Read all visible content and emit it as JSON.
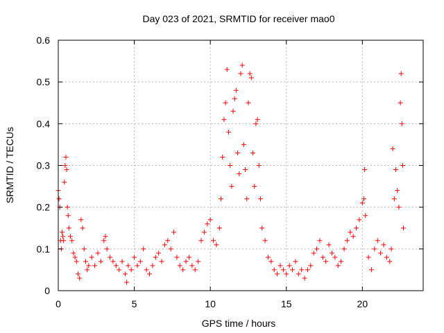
{
  "chart_data": {
    "type": "scatter",
    "title": "Day 023 of 2021, SRMTID for receiver mao0",
    "xlabel": "GPS time / hours",
    "ylabel": "SRMTID / TECUs",
    "xlim": [
      0,
      24
    ],
    "ylim": [
      0,
      0.6
    ],
    "x_ticks": [
      0,
      5,
      10,
      15,
      20
    ],
    "y_ticks": [
      0,
      0.1,
      0.2,
      0.3,
      0.4,
      0.5,
      0.6
    ],
    "x_tick_labels": [
      "0",
      "5",
      "10",
      "15",
      "20"
    ],
    "y_tick_labels": [
      "0",
      "0.1",
      "0.2",
      "0.3",
      "0.4",
      "0.5",
      "0.6"
    ],
    "grid": true,
    "marker": "+",
    "color": "#ff0000",
    "series": [
      {
        "name": "SRMTID",
        "points": [
          [
            0.0,
            0.24
          ],
          [
            0.05,
            0.22
          ],
          [
            0.1,
            0.2
          ],
          [
            0.15,
            0.12
          ],
          [
            0.2,
            0.1
          ],
          [
            0.25,
            0.14
          ],
          [
            0.3,
            0.13
          ],
          [
            0.35,
            0.12
          ],
          [
            0.4,
            0.26
          ],
          [
            0.45,
            0.3
          ],
          [
            0.5,
            0.32
          ],
          [
            0.55,
            0.29
          ],
          [
            0.6,
            0.2
          ],
          [
            0.65,
            0.18
          ],
          [
            0.7,
            0.15
          ],
          [
            0.8,
            0.13
          ],
          [
            0.9,
            0.12
          ],
          [
            1.0,
            0.09
          ],
          [
            1.1,
            0.08
          ],
          [
            1.2,
            0.07
          ],
          [
            1.3,
            0.04
          ],
          [
            1.4,
            0.03
          ],
          [
            1.5,
            0.17
          ],
          [
            1.6,
            0.15
          ],
          [
            1.7,
            0.1
          ],
          [
            1.8,
            0.07
          ],
          [
            1.9,
            0.05
          ],
          [
            2.0,
            0.06
          ],
          [
            2.2,
            0.08
          ],
          [
            2.4,
            0.06
          ],
          [
            2.6,
            0.09
          ],
          [
            2.8,
            0.07
          ],
          [
            3.0,
            0.12
          ],
          [
            3.1,
            0.13
          ],
          [
            3.2,
            0.1
          ],
          [
            3.4,
            0.08
          ],
          [
            3.6,
            0.07
          ],
          [
            3.8,
            0.06
          ],
          [
            4.0,
            0.05
          ],
          [
            4.2,
            0.07
          ],
          [
            4.4,
            0.04
          ],
          [
            4.5,
            0.02
          ],
          [
            4.6,
            0.06
          ],
          [
            4.8,
            0.05
          ],
          [
            5.0,
            0.08
          ],
          [
            5.2,
            0.06
          ],
          [
            5.4,
            0.07
          ],
          [
            5.6,
            0.1
          ],
          [
            5.8,
            0.05
          ],
          [
            6.0,
            0.04
          ],
          [
            6.2,
            0.06
          ],
          [
            6.4,
            0.08
          ],
          [
            6.6,
            0.09
          ],
          [
            6.8,
            0.07
          ],
          [
            7.0,
            0.11
          ],
          [
            7.2,
            0.12
          ],
          [
            7.4,
            0.1
          ],
          [
            7.6,
            0.14
          ],
          [
            7.8,
            0.08
          ],
          [
            8.0,
            0.06
          ],
          [
            8.2,
            0.05
          ],
          [
            8.4,
            0.07
          ],
          [
            8.6,
            0.08
          ],
          [
            8.8,
            0.06
          ],
          [
            9.0,
            0.05
          ],
          [
            9.2,
            0.07
          ],
          [
            9.4,
            0.12
          ],
          [
            9.6,
            0.14
          ],
          [
            9.8,
            0.16
          ],
          [
            10.0,
            0.17
          ],
          [
            10.2,
            0.12
          ],
          [
            10.4,
            0.11
          ],
          [
            10.6,
            0.15
          ],
          [
            10.7,
            0.22
          ],
          [
            10.8,
            0.32
          ],
          [
            10.9,
            0.41
          ],
          [
            11.0,
            0.45
          ],
          [
            11.1,
            0.53
          ],
          [
            11.2,
            0.38
          ],
          [
            11.3,
            0.3
          ],
          [
            11.4,
            0.25
          ],
          [
            11.5,
            0.43
          ],
          [
            11.6,
            0.46
          ],
          [
            11.7,
            0.48
          ],
          [
            11.8,
            0.33
          ],
          [
            11.9,
            0.28
          ],
          [
            12.0,
            0.52
          ],
          [
            12.1,
            0.54
          ],
          [
            12.2,
            0.35
          ],
          [
            12.3,
            0.29
          ],
          [
            12.4,
            0.22
          ],
          [
            12.5,
            0.45
          ],
          [
            12.6,
            0.52
          ],
          [
            12.7,
            0.51
          ],
          [
            12.8,
            0.33
          ],
          [
            12.9,
            0.25
          ],
          [
            13.0,
            0.4
          ],
          [
            13.1,
            0.41
          ],
          [
            13.2,
            0.3
          ],
          [
            13.3,
            0.22
          ],
          [
            13.4,
            0.15
          ],
          [
            13.6,
            0.12
          ],
          [
            13.8,
            0.08
          ],
          [
            14.0,
            0.07
          ],
          [
            14.2,
            0.05
          ],
          [
            14.4,
            0.04
          ],
          [
            14.6,
            0.06
          ],
          [
            14.8,
            0.05
          ],
          [
            15.0,
            0.04
          ],
          [
            15.2,
            0.06
          ],
          [
            15.4,
            0.05
          ],
          [
            15.6,
            0.07
          ],
          [
            15.8,
            0.04
          ],
          [
            16.0,
            0.05
          ],
          [
            16.2,
            0.03
          ],
          [
            16.4,
            0.05
          ],
          [
            16.6,
            0.06
          ],
          [
            16.8,
            0.09
          ],
          [
            17.0,
            0.1
          ],
          [
            17.2,
            0.12
          ],
          [
            17.4,
            0.08
          ],
          [
            17.6,
            0.07
          ],
          [
            17.8,
            0.11
          ],
          [
            18.0,
            0.09
          ],
          [
            18.2,
            0.08
          ],
          [
            18.4,
            0.06
          ],
          [
            18.6,
            0.07
          ],
          [
            18.8,
            0.1
          ],
          [
            19.0,
            0.12
          ],
          [
            19.2,
            0.14
          ],
          [
            19.4,
            0.13
          ],
          [
            19.6,
            0.15
          ],
          [
            19.8,
            0.17
          ],
          [
            20.0,
            0.21
          ],
          [
            20.1,
            0.22
          ],
          [
            20.15,
            0.29
          ],
          [
            20.2,
            0.18
          ],
          [
            20.4,
            0.08
          ],
          [
            20.6,
            0.05
          ],
          [
            20.8,
            0.1
          ],
          [
            21.0,
            0.12
          ],
          [
            21.2,
            0.09
          ],
          [
            21.4,
            0.11
          ],
          [
            21.6,
            0.08
          ],
          [
            21.8,
            0.07
          ],
          [
            21.9,
            0.1
          ],
          [
            22.0,
            0.34
          ],
          [
            22.1,
            0.22
          ],
          [
            22.2,
            0.29
          ],
          [
            22.3,
            0.24
          ],
          [
            22.4,
            0.2
          ],
          [
            22.5,
            0.45
          ],
          [
            22.55,
            0.52
          ],
          [
            22.6,
            0.4
          ],
          [
            22.65,
            0.3
          ],
          [
            22.7,
            0.15
          ]
        ]
      }
    ]
  }
}
